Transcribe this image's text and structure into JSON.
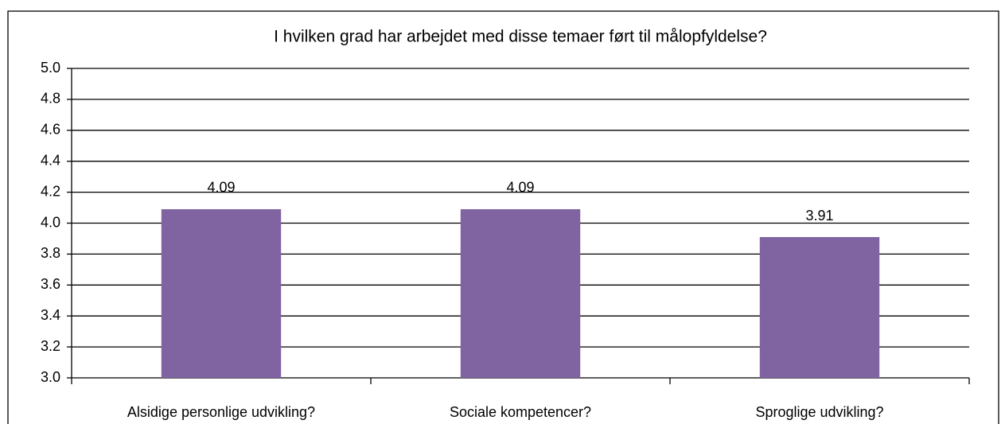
{
  "chart_data": {
    "type": "bar",
    "title": "I hvilken grad har arbejdet med disse temaer ført til målopfyldelse?",
    "categories": [
      "Alsidige personlige udvikling?",
      "Sociale kompetencer?",
      "Sproglige udvikling?"
    ],
    "values": [
      4.09,
      4.09,
      3.91
    ],
    "color": "#8064a2",
    "ylim": [
      3,
      5
    ],
    "yticks": [
      {
        "value": 3,
        "label": "3.0"
      },
      3.2,
      3.4,
      3.6,
      3.8,
      {
        "value": 4,
        "label": "4.0"
      },
      4.2,
      4.4,
      4.6,
      4.8,
      {
        "value": 5,
        "label": "5.0"
      }
    ],
    "grid": true
  }
}
